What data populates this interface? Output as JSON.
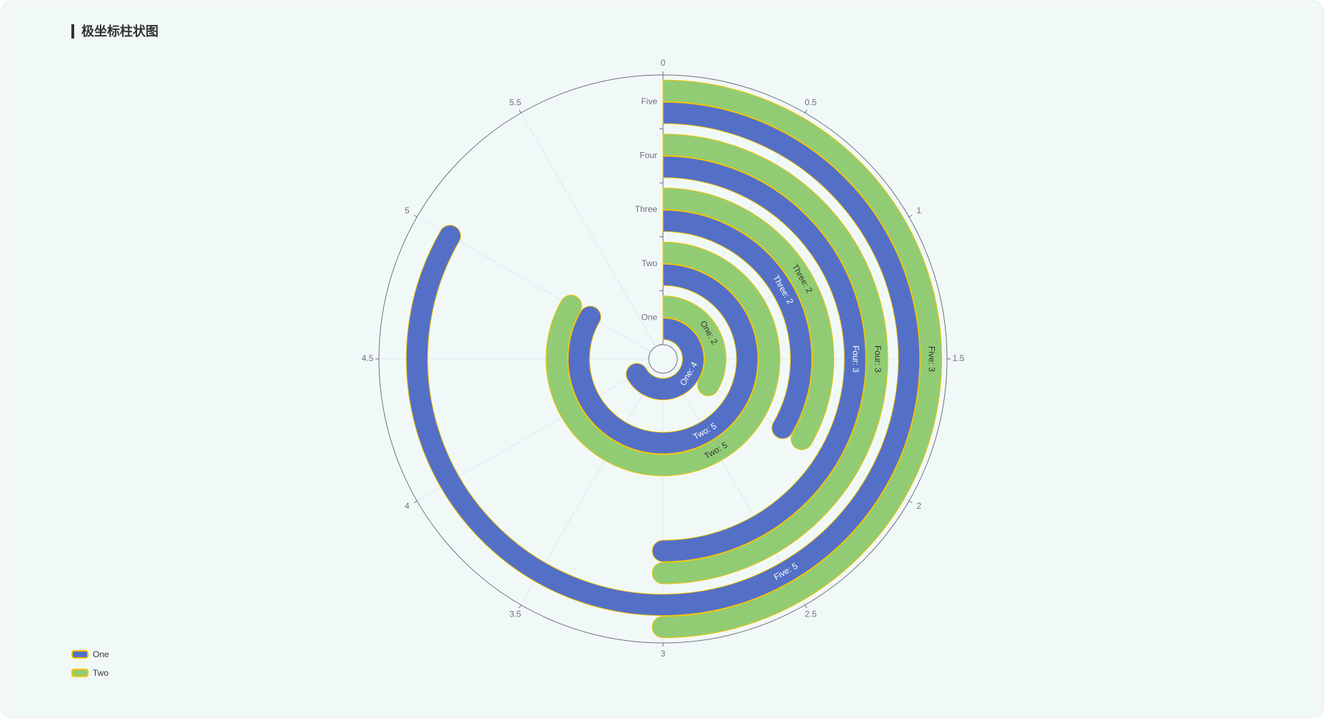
{
  "title": "极坐标柱状图",
  "colors": {
    "one": "#5470c6",
    "two": "#91cc75",
    "bar_border": "#f4c300",
    "axis": "#6e7079",
    "split": "#e0e6f1"
  },
  "chart_data": {
    "type": "bar",
    "coordinate_system": "polar",
    "categories": [
      "One",
      "Two",
      "Three",
      "Four",
      "Five"
    ],
    "angle_axis": {
      "min": 0,
      "max": 6,
      "ticks": [
        0,
        0.5,
        1,
        1.5,
        2,
        2.5,
        3,
        3.5,
        4,
        4.5,
        5,
        5.5
      ]
    },
    "rounded_caps": true,
    "series": [
      {
        "name": "One",
        "values": [
          4,
          5,
          2,
          3,
          5
        ],
        "labels": [
          "One: 4",
          "Two: 5",
          "Three: 2",
          "Four: 3",
          "Five: 5"
        ]
      },
      {
        "name": "Two",
        "values": [
          2,
          5,
          2,
          3,
          3
        ],
        "labels": [
          "One: 2",
          "Two: 5",
          "Three: 2",
          "Four: 3",
          "Five: 3"
        ]
      }
    ],
    "legend": {
      "position": "bottom-left",
      "orient": "vertical"
    }
  }
}
